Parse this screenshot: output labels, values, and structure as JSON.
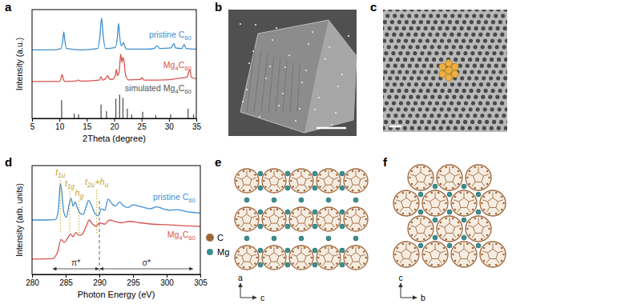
{
  "panel_labels": [
    "a",
    "b",
    "c",
    "d",
    "e",
    "f"
  ],
  "chart_data": [
    {
      "type": "line",
      "x_label": "2Theta (degree)",
      "y_label": "Intensity (a.u.)",
      "xlim": [
        5,
        35
      ],
      "xticks": [
        5,
        10,
        15,
        20,
        25,
        30,
        35
      ],
      "ylim": [
        0,
        3.3
      ],
      "tick_labels": "x",
      "series": [
        {
          "name": "pristine C60",
          "color": "#3f8fcf",
          "x": [
            5,
            9,
            10.3,
            10.6,
            10.8,
            11.0,
            11.3,
            14,
            17.0,
            17.4,
            17.7,
            18.0,
            18.4,
            20.2,
            20.6,
            20.8,
            21.0,
            21.3,
            21.5,
            21.7,
            21.9,
            22.3,
            26,
            27.3,
            27.6,
            27.9,
            28.3,
            30.4,
            30.7,
            30.9,
            31.2,
            32.4,
            32.6,
            32.8,
            33.1,
            35
          ],
          "values": [
            2.08,
            2.08,
            2.12,
            2.35,
            2.62,
            2.35,
            2.12,
            2.08,
            2.12,
            2.5,
            3.05,
            2.5,
            2.12,
            2.15,
            2.5,
            2.88,
            2.5,
            2.2,
            2.25,
            2.3,
            2.2,
            2.1,
            2.1,
            2.12,
            2.18,
            2.2,
            2.12,
            2.14,
            2.22,
            2.27,
            2.14,
            2.12,
            2.2,
            2.24,
            2.12,
            2.1
          ]
        },
        {
          "name": "Mg4C60",
          "color": "#d9534f",
          "x": [
            5,
            10.0,
            10.3,
            10.5,
            10.7,
            11.0,
            13,
            13.4,
            14,
            17.3,
            17.6,
            17.9,
            18.5,
            18.8,
            19.1,
            19.6,
            20.2,
            20.4,
            20.6,
            20.9,
            21.2,
            21.4,
            21.6,
            21.8,
            22.1,
            22.6,
            24.8,
            25.1,
            25.4,
            28,
            30.5,
            31,
            33.3,
            33.6,
            33.8,
            34.1,
            35
          ],
          "values": [
            1.12,
            1.12,
            1.22,
            1.33,
            1.2,
            1.12,
            1.13,
            1.16,
            1.13,
            1.16,
            1.26,
            1.16,
            1.22,
            1.3,
            1.2,
            1.18,
            1.3,
            1.48,
            1.3,
            1.4,
            1.95,
            1.7,
            1.85,
            1.72,
            1.3,
            1.17,
            1.18,
            1.24,
            1.16,
            1.16,
            1.18,
            1.2,
            1.25,
            1.4,
            1.48,
            1.25,
            1.2
          ]
        },
        {
          "name": "simulated Mg4C60",
          "type": "stem",
          "color": "#555555",
          "x": [
            10.4,
            12.7,
            13.5,
            17.6,
            18.6,
            20.3,
            21.0,
            21.6,
            22.4,
            23.2,
            25.2,
            27.6,
            30.3,
            33.5,
            34.5
          ],
          "values": [
            0.55,
            0.15,
            0.12,
            0.42,
            0.22,
            0.6,
            0.72,
            0.62,
            0.3,
            0.12,
            0.2,
            0.1,
            0.12,
            0.3,
            0.12
          ]
        }
      ]
    },
    {
      "type": "line",
      "x_label": "Photon Energy (eV)",
      "y_label": "Intensity (arb. units)",
      "xlim": [
        280,
        305
      ],
      "xticks": [
        280,
        285,
        290,
        295,
        300,
        305
      ],
      "ylim": [
        0,
        3.9
      ],
      "tick_labels": "x",
      "series": [
        {
          "name": "pristine C60",
          "color": "#3f8fcf",
          "x": [
            280,
            282,
            283.5,
            283.9,
            284.2,
            284.4,
            284.7,
            285.1,
            285.5,
            285.8,
            286.1,
            286.4,
            286.7,
            287.1,
            287.6,
            288.0,
            288.4,
            288.8,
            289.3,
            289.8,
            290.3,
            290.8,
            291.3,
            291.8,
            292.4,
            293.0,
            293.6,
            294.3,
            295.0,
            295.8,
            296.6,
            297.5,
            298.5,
            299.5,
            300.5,
            301.5,
            303,
            305
          ],
          "values": [
            1.95,
            1.95,
            1.97,
            2.3,
            3.25,
            3.0,
            2.25,
            2.05,
            2.5,
            2.72,
            2.45,
            2.6,
            2.4,
            2.2,
            2.15,
            2.4,
            2.65,
            2.5,
            2.2,
            2.1,
            2.35,
            2.3,
            2.7,
            2.55,
            2.45,
            2.6,
            2.45,
            2.4,
            2.5,
            2.45,
            2.4,
            2.35,
            2.42,
            2.35,
            2.3,
            2.32,
            2.25,
            2.2
          ]
        },
        {
          "name": "Mg4C60",
          "color": "#d9534f",
          "x": [
            280,
            283,
            283.8,
            284.3,
            284.8,
            285.3,
            285.7,
            286.1,
            286.5,
            287.0,
            287.5,
            288.0,
            288.5,
            289.0,
            289.5,
            290.0,
            290.8,
            291.5,
            292.3,
            293.2,
            294.5,
            296,
            298,
            300,
            302,
            305
          ],
          "values": [
            0.55,
            0.56,
            0.8,
            1.25,
            1.15,
            1.3,
            1.45,
            1.35,
            1.5,
            1.4,
            1.45,
            1.7,
            1.95,
            1.8,
            1.72,
            1.85,
            1.8,
            1.95,
            1.9,
            1.85,
            1.9,
            1.85,
            1.8,
            1.78,
            1.75,
            1.72
          ]
        }
      ],
      "vlines": [
        290
      ],
      "annotations": [
        {
          "text": "t1u",
          "x": 284.2,
          "y": 3.55
        },
        {
          "text": "t1g",
          "x": 285.6,
          "y": 3.15
        },
        {
          "text": "hg",
          "x": 287.0,
          "y": 2.8
        },
        {
          "text": "t2u+hu",
          "x": 289.6,
          "y": 3.2
        }
      ],
      "regions": [
        {
          "text": "π*",
          "from": 283,
          "to": 290
        },
        {
          "text": "σ*",
          "from": 290,
          "to": 304
        }
      ]
    }
  ],
  "structure": {
    "legend": [
      {
        "name": "C",
        "color": "#a0673a"
      },
      {
        "name": "Mg",
        "color": "#3a8f8f"
      }
    ],
    "axes": [
      [
        "a",
        "c"
      ],
      [
        "c",
        "b"
      ]
    ]
  }
}
